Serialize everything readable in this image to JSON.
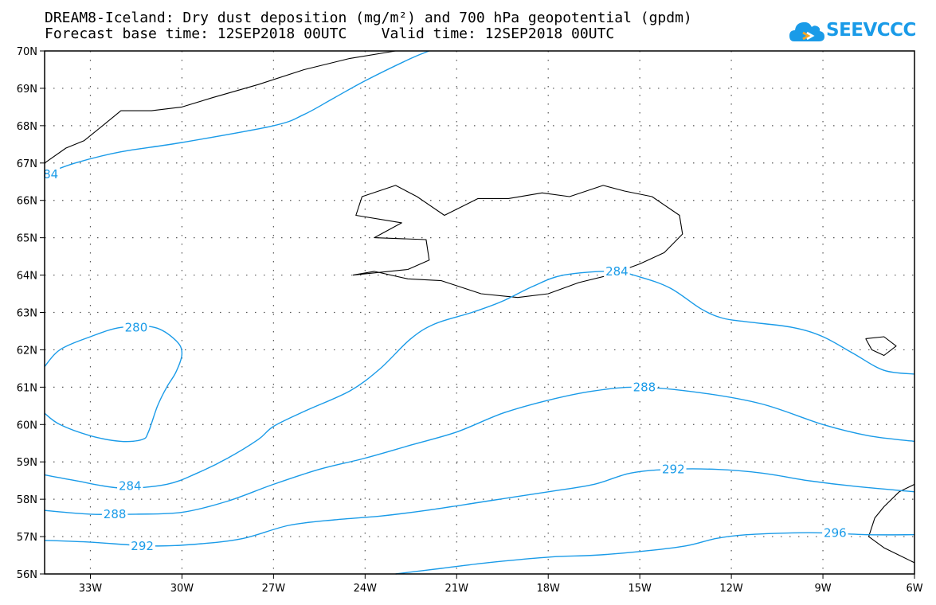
{
  "title": {
    "line1": "DREAM8-Iceland: Dry dust deposition (mg/m²) and 700 hPa geopotential (gpdm)",
    "line2": "Forecast base time: 12SEP2018 00UTC    Valid time: 12SEP2018 00UTC"
  },
  "logo": {
    "text": "SEEVCCC",
    "icon": "cloud-icon",
    "color": "#1a9be8"
  },
  "colors": {
    "contour": "#1a9be8",
    "coast": "#000000",
    "grid": "#555555"
  },
  "axes": {
    "lon_ticks": [
      "33W",
      "30W",
      "27W",
      "24W",
      "21W",
      "18W",
      "15W",
      "12W",
      "9W",
      "6W"
    ],
    "lat_ticks": [
      "56N",
      "57N",
      "58N",
      "59N",
      "60N",
      "61N",
      "62N",
      "63N",
      "64N",
      "65N",
      "66N",
      "67N",
      "68N",
      "69N",
      "70N"
    ],
    "lon_range": [
      -34.5,
      -6
    ],
    "lat_range": [
      56,
      70
    ],
    "grid": "dotted"
  },
  "chart_data": {
    "type": "contour-map",
    "variable": "700 hPa geopotential (gpdm)",
    "contour_interval": 4,
    "contours": [
      {
        "value": 284,
        "label": "84",
        "points": [
          [
            -34.5,
            66.7
          ],
          [
            -33.5,
            67.0
          ],
          [
            -32,
            67.3
          ],
          [
            -30,
            67.55
          ],
          [
            -27,
            68.0
          ],
          [
            -26,
            68.3
          ],
          [
            -25,
            68.75
          ],
          [
            -24,
            69.2
          ],
          [
            -22.5,
            69.8
          ],
          [
            -21.9,
            70.0
          ]
        ]
      },
      {
        "value": 280,
        "label": "280",
        "points": [
          [
            -34.5,
            61.55
          ],
          [
            -34,
            62.0
          ],
          [
            -33,
            62.35
          ],
          [
            -32,
            62.6
          ],
          [
            -30.9,
            62.6
          ],
          [
            -30.2,
            62.25
          ],
          [
            -30,
            61.9
          ],
          [
            -30.2,
            61.4
          ],
          [
            -30.5,
            61.0
          ],
          [
            -30.8,
            60.5
          ],
          [
            -31.1,
            59.8
          ],
          [
            -31.3,
            59.6
          ],
          [
            -32,
            59.55
          ],
          [
            -33,
            59.7
          ],
          [
            -34,
            60.0
          ],
          [
            -34.5,
            60.3
          ]
        ]
      },
      {
        "value": 284,
        "label": "284",
        "points": [
          [
            -34.5,
            58.65
          ],
          [
            -33.5,
            58.5
          ],
          [
            -32,
            58.3
          ],
          [
            -30.5,
            58.4
          ],
          [
            -29.5,
            58.7
          ],
          [
            -28.5,
            59.1
          ],
          [
            -27.5,
            59.6
          ],
          [
            -27,
            59.95
          ],
          [
            -26,
            60.35
          ],
          [
            -24.5,
            60.9
          ],
          [
            -23.5,
            61.5
          ],
          [
            -22.5,
            62.3
          ],
          [
            -21.7,
            62.7
          ],
          [
            -20.5,
            63.0
          ],
          [
            -19.5,
            63.3
          ],
          [
            -18.5,
            63.7
          ],
          [
            -17.5,
            64.0
          ],
          [
            -15.9,
            64.1
          ],
          [
            -15,
            63.95
          ],
          [
            -14,
            63.65
          ],
          [
            -13,
            63.1
          ],
          [
            -12.3,
            62.85
          ],
          [
            -11.5,
            62.75
          ],
          [
            -10,
            62.6
          ],
          [
            -9,
            62.35
          ],
          [
            -8,
            61.9
          ],
          [
            -7,
            61.45
          ],
          [
            -6,
            61.35
          ]
        ]
      },
      {
        "value": 288,
        "label": "288",
        "points": [
          [
            -34.5,
            57.7
          ],
          [
            -33,
            57.6
          ],
          [
            -31.5,
            57.6
          ],
          [
            -30,
            57.65
          ],
          [
            -28.5,
            57.95
          ],
          [
            -27,
            58.4
          ],
          [
            -25.5,
            58.8
          ],
          [
            -24,
            59.1
          ],
          [
            -22.5,
            59.45
          ],
          [
            -21,
            59.8
          ],
          [
            -19.5,
            60.3
          ],
          [
            -18,
            60.65
          ],
          [
            -16.5,
            60.9
          ],
          [
            -15,
            61.0
          ],
          [
            -13,
            60.85
          ],
          [
            -11,
            60.55
          ],
          [
            -9,
            60.0
          ],
          [
            -7.5,
            59.7
          ],
          [
            -6,
            59.55
          ]
        ]
      },
      {
        "value": 292,
        "label": "292",
        "points": [
          [
            -34.5,
            56.9
          ],
          [
            -33,
            56.85
          ],
          [
            -31,
            56.75
          ],
          [
            -29.5,
            56.8
          ],
          [
            -28,
            56.95
          ],
          [
            -26.5,
            57.3
          ],
          [
            -25,
            57.45
          ],
          [
            -23.5,
            57.55
          ],
          [
            -22,
            57.7
          ],
          [
            -20,
            57.95
          ],
          [
            -18,
            58.2
          ],
          [
            -16.5,
            58.4
          ],
          [
            -15.3,
            58.7
          ],
          [
            -14,
            58.8
          ],
          [
            -12.5,
            58.8
          ],
          [
            -11,
            58.7
          ],
          [
            -9.5,
            58.5
          ],
          [
            -8,
            58.35
          ],
          [
            -6,
            58.2
          ]
        ]
      },
      {
        "value": 296,
        "label": "296",
        "points": [
          [
            -23,
            56.0
          ],
          [
            -21.5,
            56.15
          ],
          [
            -20,
            56.3
          ],
          [
            -18,
            56.45
          ],
          [
            -16.5,
            56.5
          ],
          [
            -15,
            56.6
          ],
          [
            -13.5,
            56.75
          ],
          [
            -12.5,
            56.95
          ],
          [
            -11.5,
            57.05
          ],
          [
            -10,
            57.1
          ],
          [
            -9,
            57.1
          ],
          [
            -7.5,
            57.05
          ],
          [
            -6,
            57.05
          ]
        ]
      }
    ],
    "label_positions": [
      {
        "text": "84",
        "lon": -34.3,
        "lat": 66.7
      },
      {
        "text": "280",
        "lon": -31.5,
        "lat": 62.6
      },
      {
        "text": "284",
        "lon": -31.7,
        "lat": 58.35
      },
      {
        "text": "284",
        "lon": -15.75,
        "lat": 64.1
      },
      {
        "text": "288",
        "lon": -32.2,
        "lat": 57.6
      },
      {
        "text": "288",
        "lon": -14.85,
        "lat": 61.0
      },
      {
        "text": "292",
        "lon": -31.3,
        "lat": 56.75
      },
      {
        "text": "292",
        "lon": -13.9,
        "lat": 58.8
      },
      {
        "text": "296",
        "lon": -8.6,
        "lat": 57.1
      }
    ],
    "coastlines": [
      {
        "name": "iceland",
        "points": [
          [
            -24.4,
            64.0
          ],
          [
            -23.7,
            64.1
          ],
          [
            -22.6,
            63.9
          ],
          [
            -21.5,
            63.85
          ],
          [
            -20.2,
            63.5
          ],
          [
            -19.0,
            63.4
          ],
          [
            -18.0,
            63.5
          ],
          [
            -17.0,
            63.8
          ],
          [
            -16.0,
            64.0
          ],
          [
            -15.0,
            64.3
          ],
          [
            -14.2,
            64.6
          ],
          [
            -13.6,
            65.1
          ],
          [
            -13.7,
            65.6
          ],
          [
            -14.6,
            66.1
          ],
          [
            -15.5,
            66.25
          ],
          [
            -16.2,
            66.4
          ],
          [
            -17.3,
            66.1
          ],
          [
            -18.2,
            66.2
          ],
          [
            -19.3,
            66.05
          ],
          [
            -20.3,
            66.05
          ],
          [
            -21.4,
            65.6
          ],
          [
            -22.3,
            66.1
          ],
          [
            -23.0,
            66.4
          ],
          [
            -24.1,
            66.1
          ],
          [
            -24.3,
            65.6
          ],
          [
            -22.8,
            65.4
          ],
          [
            -23.7,
            65.0
          ],
          [
            -22.0,
            64.95
          ],
          [
            -21.9,
            64.4
          ],
          [
            -22.6,
            64.15
          ],
          [
            -24.4,
            64.0
          ]
        ]
      },
      {
        "name": "greenland",
        "points": [
          [
            -34.5,
            67.0
          ],
          [
            -33.8,
            67.4
          ],
          [
            -33.2,
            67.6
          ],
          [
            -32.6,
            68.0
          ],
          [
            -32.0,
            68.4
          ],
          [
            -31.0,
            68.4
          ],
          [
            -30.0,
            68.5
          ],
          [
            -29.0,
            68.75
          ],
          [
            -27.5,
            69.1
          ],
          [
            -26.0,
            69.5
          ],
          [
            -24.5,
            69.8
          ],
          [
            -23.0,
            70.0
          ]
        ]
      },
      {
        "name": "faroe",
        "points": [
          [
            -7.6,
            62.3
          ],
          [
            -7.0,
            62.35
          ],
          [
            -6.6,
            62.1
          ],
          [
            -7.0,
            61.85
          ],
          [
            -7.4,
            62.0
          ],
          [
            -7.6,
            62.3
          ]
        ]
      },
      {
        "name": "hebrides",
        "points": [
          [
            -6,
            58.4
          ],
          [
            -6.5,
            58.2
          ],
          [
            -7.0,
            57.8
          ],
          [
            -7.3,
            57.5
          ],
          [
            -7.5,
            57.0
          ],
          [
            -7.0,
            56.7
          ],
          [
            -6.5,
            56.5
          ],
          [
            -6,
            56.3
          ]
        ]
      }
    ]
  }
}
